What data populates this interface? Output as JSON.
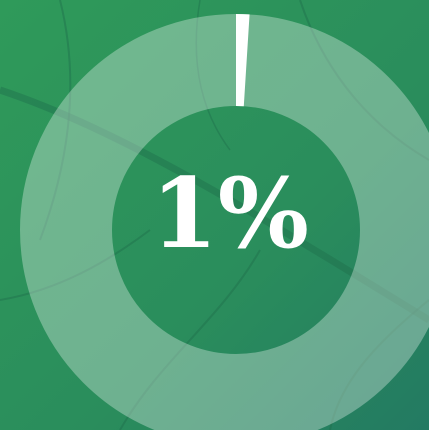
{
  "chart_data": {
    "type": "donut",
    "values": [
      1
    ],
    "value_labels": [
      "1%"
    ],
    "color": "#ffffff"
  }
}
